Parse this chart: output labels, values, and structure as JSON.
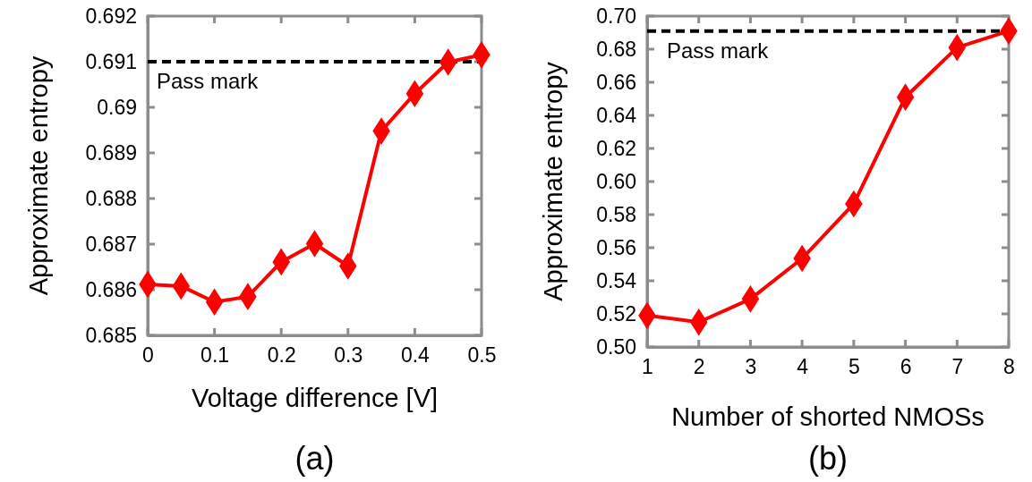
{
  "chart_data": [
    {
      "type": "line",
      "xlabel": "Voltage difference [V]",
      "ylabel": "Approximate entropy",
      "x": [
        0,
        0.05,
        0.1,
        0.15,
        0.2,
        0.25,
        0.3,
        0.35,
        0.4,
        0.45,
        0.5
      ],
      "series": [
        {
          "color": "#ff0000",
          "values": [
            0.68612,
            0.68608,
            0.68573,
            0.68585,
            0.68661,
            0.68701,
            0.68652,
            0.68948,
            0.6903,
            0.69099,
            0.69115
          ]
        }
      ],
      "xlim": [
        0,
        0.5
      ],
      "xticks": [
        0,
        0.1,
        0.2,
        0.3,
        0.4,
        0.5
      ],
      "ylim": [
        0.685,
        0.692
      ],
      "yticks": [
        0.685,
        0.686,
        0.687,
        0.688,
        0.689,
        0.69,
        0.691,
        0.692
      ],
      "ref_lines": [
        {
          "axis": "y",
          "value": 0.691,
          "label": "Pass mark",
          "color": "#000000",
          "line_style": "dashed"
        }
      ],
      "annotations": [
        "(a)"
      ],
      "marker": "diamond",
      "line_style": "solid",
      "grid": false
    },
    {
      "type": "line",
      "xlabel": "Number of shorted NMOSs",
      "ylabel": "Approximate entropy",
      "x": [
        1,
        2,
        3,
        4,
        5,
        6,
        7,
        8
      ],
      "series": [
        {
          "color": "#ff0000",
          "values": [
            0.519,
            0.515,
            0.529,
            0.5535,
            0.5865,
            0.651,
            0.681,
            0.691
          ]
        }
      ],
      "xlim": [
        1,
        8
      ],
      "xticks": [
        1,
        2,
        3,
        4,
        5,
        6,
        7,
        8
      ],
      "ylim": [
        0.5,
        0.7
      ],
      "yticks": [
        {
          "value": 0.5,
          "label": "0.50"
        },
        0.52,
        0.54,
        0.56,
        0.58,
        {
          "value": 0.6,
          "label": "0.60"
        },
        0.62,
        0.64,
        0.66,
        0.68,
        {
          "value": 0.7,
          "label": "0.70"
        }
      ],
      "ref_lines": [
        {
          "axis": "y",
          "value": 0.691,
          "label": "Pass mark",
          "color": "#000000",
          "line_style": "dashed"
        }
      ],
      "annotations": [
        "(b)"
      ],
      "marker": "diamond",
      "line_style": "solid",
      "grid": false
    }
  ]
}
